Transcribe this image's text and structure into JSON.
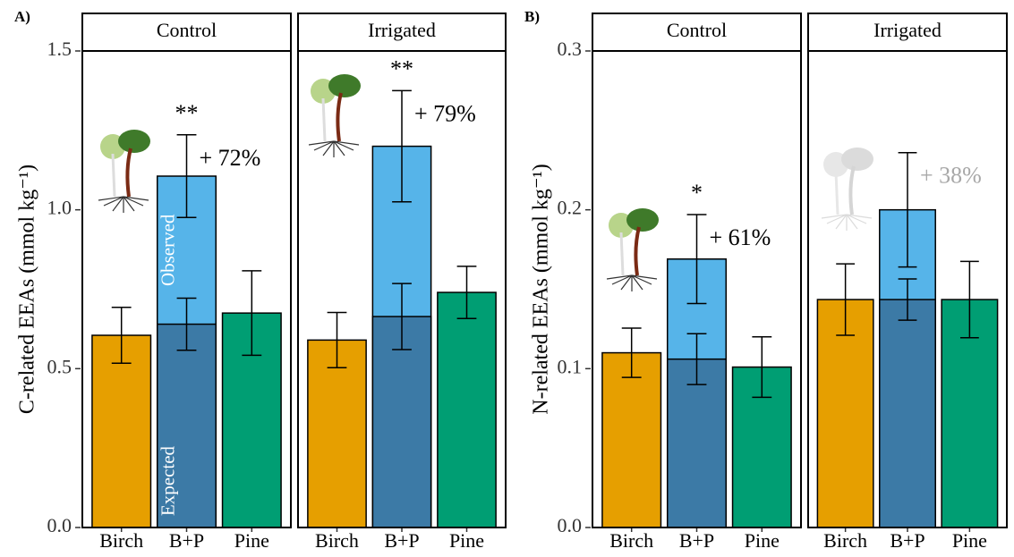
{
  "chart_data": [
    {
      "type": "bar",
      "panel": "A)",
      "ylabel": "C-related EEAs (mmol kg⁻¹)",
      "ylim": [
        0,
        1.5
      ],
      "yticks": [
        {
          "value": 0,
          "label": "0.0"
        },
        0.5,
        {
          "value": 1,
          "label": "1.0"
        },
        1.5
      ],
      "series_labels": [
        "Expected",
        "Observed"
      ],
      "colors": [
        "#e69f00",
        "#3c7aa6",
        "#009e73"
      ],
      "observed_color": "#56b4e9",
      "facets": [
        {
          "title": "Control",
          "categories": [
            "Birch",
            "B+P",
            "Pine"
          ],
          "values": [
            0.605,
            0.64,
            0.675
          ],
          "errors": [
            0.088,
            0.082,
            0.133
          ],
          "observed": [
            null,
            1.106,
            null
          ],
          "observed_errors": [
            null,
            0.13,
            null
          ],
          "significance": "**",
          "change": "+ 72%",
          "annotation_color": "#000000"
        },
        {
          "title": "Irrigated",
          "categories": [
            "Birch",
            "B+P",
            "Pine"
          ],
          "values": [
            0.59,
            0.664,
            0.74
          ],
          "errors": [
            0.087,
            0.104,
            0.082
          ],
          "observed": [
            null,
            1.2,
            null
          ],
          "observed_errors": [
            null,
            0.175,
            null
          ],
          "significance": "**",
          "change": "+ 79%",
          "annotation_color": "#000000"
        }
      ]
    },
    {
      "type": "bar",
      "panel": "B)",
      "ylabel": "N-related EEAs (mmol kg⁻¹)",
      "ylim": [
        0,
        0.3
      ],
      "yticks": [
        {
          "value": 0,
          "label": "0.0"
        },
        0.1,
        0.2,
        0.3
      ],
      "colors": [
        "#e69f00",
        "#3c7aa6",
        "#009e73"
      ],
      "observed_color": "#56b4e9",
      "facets": [
        {
          "title": "Control",
          "categories": [
            "Birch",
            "B+P",
            "Pine"
          ],
          "values": [
            0.11,
            0.106,
            0.101
          ],
          "errors": [
            0.0155,
            0.016,
            0.019
          ],
          "observed": [
            null,
            0.169,
            null
          ],
          "observed_errors": [
            null,
            0.028,
            null
          ],
          "significance": "*",
          "change": "+ 61%",
          "annotation_color": "#000000"
        },
        {
          "title": "Irrigated",
          "categories": [
            "Birch",
            "B+P",
            "Pine"
          ],
          "values": [
            0.1435,
            0.1435,
            0.1435
          ],
          "errors": [
            0.0225,
            0.013,
            0.024
          ],
          "observed": [
            null,
            0.2,
            null
          ],
          "observed_errors": [
            null,
            0.036,
            null
          ],
          "change": "+ 38%",
          "annotation_color": "#a8a8a8"
        }
      ]
    }
  ]
}
